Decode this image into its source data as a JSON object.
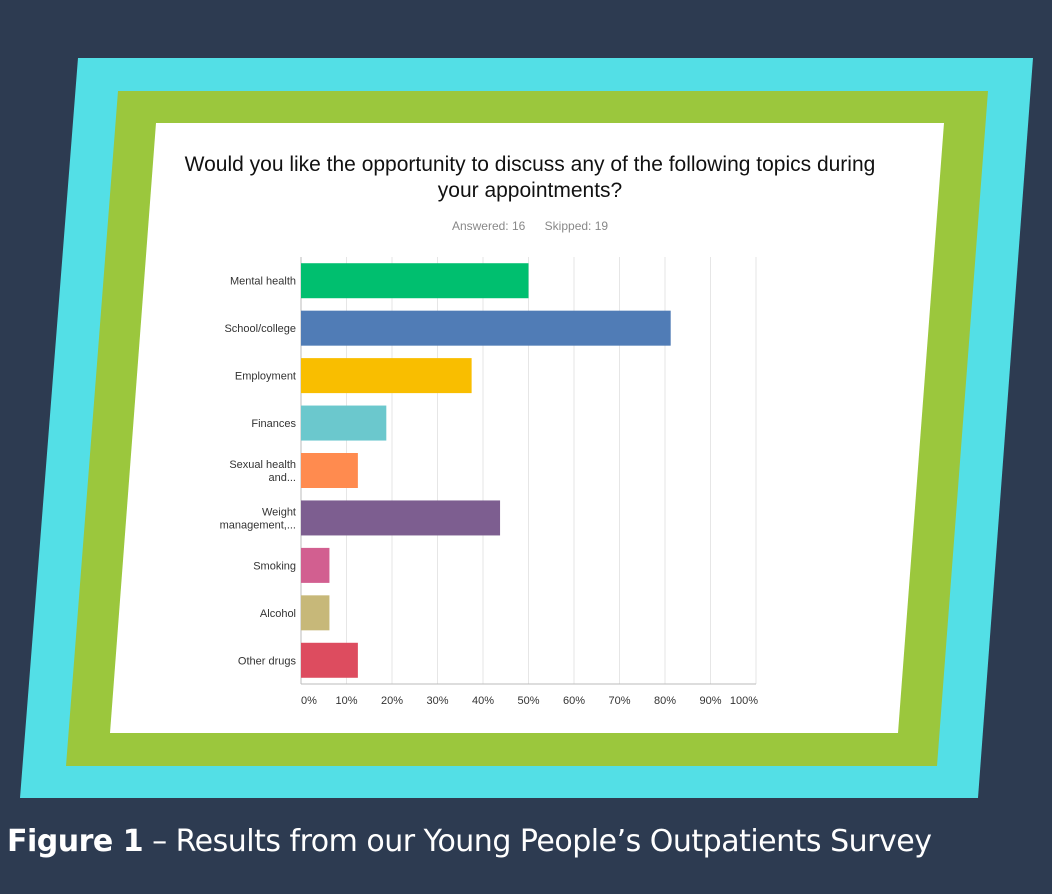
{
  "colors": {
    "background": "#2d3b51",
    "outer_frame": "#53dfe6",
    "middle_frame": "#9bc73d",
    "panel": "#ffffff"
  },
  "chart_data": {
    "type": "bar",
    "orientation": "horizontal",
    "title": "Would you like the opportunity to discuss any of the following topics during your appointments?",
    "answered": "Answered: 16",
    "skipped": "Skipped: 19",
    "categories": [
      "Mental health",
      "School/college",
      "Employment",
      "Finances",
      "Sexual health and...",
      "Weight management,...",
      "Smoking",
      "Alcohol",
      "Other drugs"
    ],
    "values": [
      50,
      81.25,
      37.5,
      18.75,
      12.5,
      43.75,
      6.25,
      6.25,
      12.5
    ],
    "colors": [
      "#00bf6f",
      "#507cb6",
      "#f9be00",
      "#6bc8cd",
      "#ff8b4f",
      "#7d5e90",
      "#d25f90",
      "#c7b879",
      "#dd4c5f"
    ],
    "xlim": [
      0,
      100
    ],
    "xticks": [
      "0%",
      "10%",
      "20%",
      "30%",
      "40%",
      "50%",
      "60%",
      "70%",
      "80%",
      "90%",
      "100%"
    ],
    "grid": true
  },
  "caption": {
    "label": "Figure 1",
    "text": " – Results from our Young People’s Outpatients Survey"
  }
}
